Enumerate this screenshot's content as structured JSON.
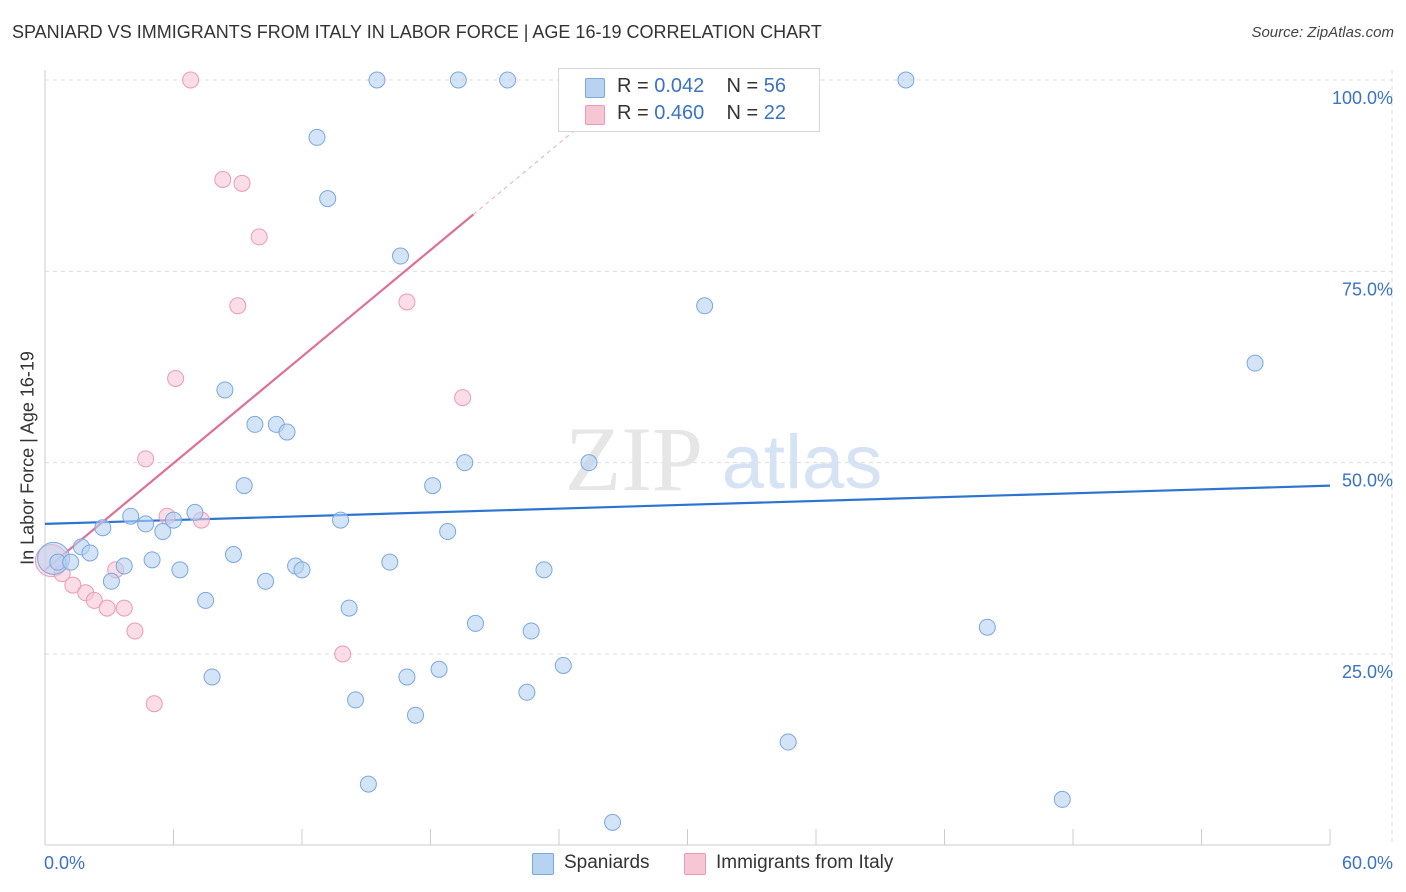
{
  "title": "SPANIARD VS IMMIGRANTS FROM ITALY IN LABOR FORCE | AGE 16-19 CORRELATION CHART",
  "source": "Source: ZipAtlas.com",
  "watermark": {
    "zip": "ZIP",
    "atlas": "atlas"
  },
  "legend": {
    "rows": [
      {
        "r_label": "R = ",
        "r_value": "0.042",
        "n_label": "N = ",
        "n_value": "56"
      },
      {
        "r_label": "R = ",
        "r_value": "0.460",
        "n_label": "N = ",
        "n_value": "22"
      }
    ]
  },
  "colors": {
    "blue_fill": "#b8d2f2",
    "blue_stroke": "#7aa7df",
    "blue_line": "#2d74d1",
    "pink_fill": "#f7c6d5",
    "pink_stroke": "#eb9ab5",
    "pink_line": "#e06f97",
    "axis_label": "#3a72c4",
    "grid": "#dddddd"
  },
  "chart_data": {
    "type": "scatter",
    "title": "SPANIARD VS IMMIGRANTS FROM ITALY IN LABOR FORCE | AGE 16-19 CORRELATION CHART",
    "xlabel": "",
    "ylabel": "In Labor Force | Age 16-19",
    "xlim": [
      0,
      60
    ],
    "ylim": [
      0,
      102
    ],
    "x_tick_labels": [
      {
        "value": 0,
        "label": "0.0%"
      },
      {
        "value": 60,
        "label": "60.0%"
      }
    ],
    "y_tick_labels": [
      {
        "value": 25,
        "label": "25.0%"
      },
      {
        "value": 50,
        "label": "50.0%"
      },
      {
        "value": 75,
        "label": "75.0%"
      },
      {
        "value": 100,
        "label": "100.0%"
      }
    ],
    "series": [
      {
        "name": "Spaniards",
        "color": "#b8d2f2",
        "trend": {
          "x0": 0,
          "y0": 42.0,
          "x1": 60,
          "y1": 47.0,
          "solid_to": 60
        },
        "points": [
          {
            "x": 0.4,
            "y": 37.5,
            "big": true
          },
          {
            "x": 0.6,
            "y": 37.0
          },
          {
            "x": 1.2,
            "y": 37.0
          },
          {
            "x": 1.7,
            "y": 39.0
          },
          {
            "x": 2.1,
            "y": 38.2
          },
          {
            "x": 2.7,
            "y": 41.5
          },
          {
            "x": 3.1,
            "y": 34.5
          },
          {
            "x": 3.7,
            "y": 36.5
          },
          {
            "x": 4.0,
            "y": 43.0
          },
          {
            "x": 4.7,
            "y": 42.0
          },
          {
            "x": 5.0,
            "y": 37.3
          },
          {
            "x": 5.5,
            "y": 41.0
          },
          {
            "x": 6.0,
            "y": 42.5
          },
          {
            "x": 6.3,
            "y": 36.0
          },
          {
            "x": 7.0,
            "y": 43.5
          },
          {
            "x": 7.5,
            "y": 32.0
          },
          {
            "x": 7.8,
            "y": 22.0
          },
          {
            "x": 8.4,
            "y": 59.5
          },
          {
            "x": 8.8,
            "y": 38.0
          },
          {
            "x": 9.3,
            "y": 47.0
          },
          {
            "x": 9.8,
            "y": 55.0
          },
          {
            "x": 10.3,
            "y": 34.5
          },
          {
            "x": 10.8,
            "y": 55.0
          },
          {
            "x": 11.3,
            "y": 54.0
          },
          {
            "x": 11.7,
            "y": 36.5
          },
          {
            "x": 12.0,
            "y": 36.0
          },
          {
            "x": 12.7,
            "y": 92.5
          },
          {
            "x": 13.2,
            "y": 84.5
          },
          {
            "x": 13.8,
            "y": 42.5
          },
          {
            "x": 14.2,
            "y": 31.0
          },
          {
            "x": 14.5,
            "y": 19.0
          },
          {
            "x": 15.1,
            "y": 8.0
          },
          {
            "x": 15.5,
            "y": 100.0
          },
          {
            "x": 16.1,
            "y": 37.0
          },
          {
            "x": 16.6,
            "y": 77.0
          },
          {
            "x": 16.9,
            "y": 22.0
          },
          {
            "x": 17.3,
            "y": 17.0
          },
          {
            "x": 18.1,
            "y": 47.0
          },
          {
            "x": 18.4,
            "y": 23.0
          },
          {
            "x": 18.8,
            "y": 41.0
          },
          {
            "x": 19.3,
            "y": 100.0
          },
          {
            "x": 19.6,
            "y": 50.0
          },
          {
            "x": 20.1,
            "y": 29.0
          },
          {
            "x": 21.6,
            "y": 100.0
          },
          {
            "x": 22.5,
            "y": 20.0
          },
          {
            "x": 22.7,
            "y": 28.0
          },
          {
            "x": 23.3,
            "y": 36.0
          },
          {
            "x": 24.2,
            "y": 23.5
          },
          {
            "x": 25.4,
            "y": 50.0
          },
          {
            "x": 26.5,
            "y": 3.0
          },
          {
            "x": 30.8,
            "y": 70.5
          },
          {
            "x": 34.7,
            "y": 13.5
          },
          {
            "x": 40.2,
            "y": 100.0
          },
          {
            "x": 44.0,
            "y": 28.5
          },
          {
            "x": 47.5,
            "y": 6.0
          },
          {
            "x": 56.5,
            "y": 63.0
          }
        ]
      },
      {
        "name": "Immigrants from Italy",
        "color": "#f7c6d5",
        "trend": {
          "x0": 0,
          "y0": 36.0,
          "x1": 28,
          "y1": 101.0,
          "solid_to": 20
        },
        "points": [
          {
            "x": 0.3,
            "y": 37.2,
            "big": true
          },
          {
            "x": 0.8,
            "y": 35.5
          },
          {
            "x": 1.3,
            "y": 34.0
          },
          {
            "x": 1.9,
            "y": 33.0
          },
          {
            "x": 2.3,
            "y": 32.0
          },
          {
            "x": 2.9,
            "y": 31.0
          },
          {
            "x": 3.3,
            "y": 36.0
          },
          {
            "x": 3.7,
            "y": 31.0
          },
          {
            "x": 4.2,
            "y": 28.0
          },
          {
            "x": 4.7,
            "y": 50.5
          },
          {
            "x": 5.1,
            "y": 18.5
          },
          {
            "x": 5.7,
            "y": 43.0
          },
          {
            "x": 6.1,
            "y": 61.0
          },
          {
            "x": 6.8,
            "y": 100.0
          },
          {
            "x": 7.3,
            "y": 42.5
          },
          {
            "x": 8.3,
            "y": 87.0
          },
          {
            "x": 9.0,
            "y": 70.5
          },
          {
            "x": 9.2,
            "y": 86.5
          },
          {
            "x": 10.0,
            "y": 79.5
          },
          {
            "x": 13.9,
            "y": 25.0
          },
          {
            "x": 16.9,
            "y": 71.0
          },
          {
            "x": 19.5,
            "y": 58.5
          }
        ]
      }
    ]
  },
  "bottom_legend": [
    {
      "label": "Spaniards"
    },
    {
      "label": "Immigrants from Italy"
    }
  ]
}
